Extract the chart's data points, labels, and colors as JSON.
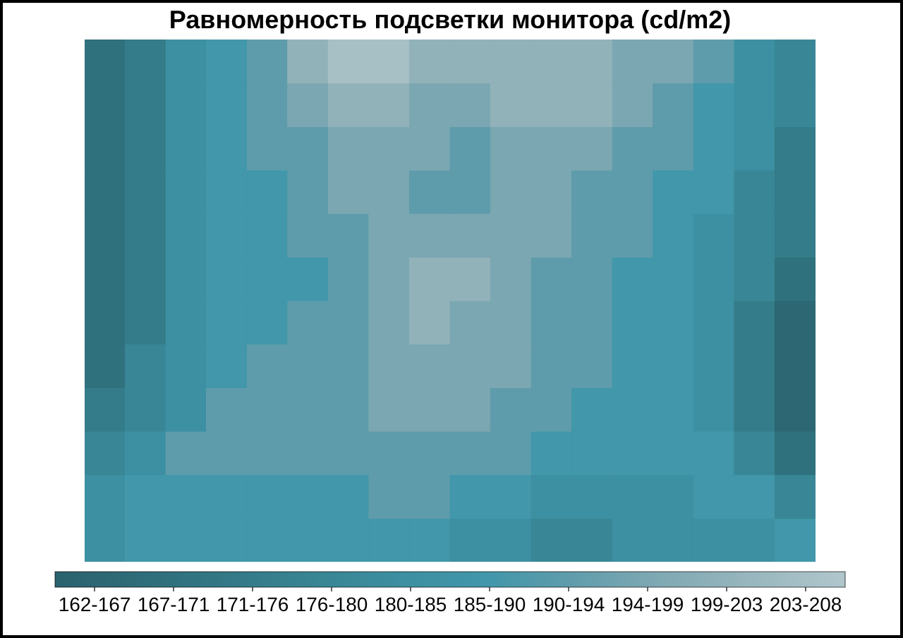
{
  "chart_data": {
    "type": "heatmap",
    "title": "Равномерность подсветки монитора (cd/m2)",
    "categories": [
      null,
      null,
      null,
      null,
      null,
      null,
      null,
      null,
      null,
      null,
      null,
      null,
      null,
      null,
      null,
      null,
      null,
      null
    ],
    "y_categories": [
      null,
      null,
      null,
      null,
      null,
      null,
      null,
      null,
      null,
      null,
      null,
      null
    ],
    "cells": [
      [
        168.9,
        173.5,
        182.7,
        187.3,
        191.9,
        201.1,
        205.7,
        205.7,
        201.1,
        201.1,
        201.1,
        201.1,
        201.1,
        196.5,
        196.5,
        191.9,
        182.7,
        178.1
      ],
      [
        168.9,
        173.5,
        182.7,
        187.3,
        191.9,
        196.5,
        201.1,
        201.1,
        196.5,
        196.5,
        201.1,
        201.1,
        201.1,
        196.5,
        191.9,
        187.3,
        182.7,
        178.1
      ],
      [
        168.9,
        173.5,
        182.7,
        187.3,
        191.9,
        191.9,
        196.5,
        196.5,
        196.5,
        191.9,
        196.5,
        196.5,
        196.5,
        191.9,
        191.9,
        187.3,
        182.7,
        173.5
      ],
      [
        168.9,
        173.5,
        182.7,
        187.3,
        187.3,
        191.9,
        196.5,
        196.5,
        191.9,
        191.9,
        196.5,
        196.5,
        191.9,
        191.9,
        187.3,
        187.3,
        178.1,
        173.5
      ],
      [
        168.9,
        173.5,
        182.7,
        187.3,
        187.3,
        191.9,
        191.9,
        196.5,
        196.5,
        196.5,
        196.5,
        196.5,
        191.9,
        191.9,
        187.3,
        182.7,
        178.1,
        173.5
      ],
      [
        168.9,
        173.5,
        182.7,
        187.3,
        187.3,
        187.3,
        191.9,
        196.5,
        201.1,
        201.1,
        196.5,
        191.9,
        191.9,
        187.3,
        187.3,
        182.7,
        178.1,
        168.9
      ],
      [
        168.9,
        173.5,
        182.7,
        187.3,
        187.3,
        191.9,
        191.9,
        196.5,
        201.1,
        196.5,
        196.5,
        191.9,
        191.9,
        187.3,
        187.3,
        182.7,
        173.5,
        164.3
      ],
      [
        168.9,
        178.1,
        182.7,
        187.3,
        191.9,
        191.9,
        191.9,
        196.5,
        196.5,
        196.5,
        196.5,
        191.9,
        191.9,
        187.3,
        187.3,
        182.7,
        173.5,
        164.3
      ],
      [
        173.5,
        178.1,
        182.7,
        191.9,
        191.9,
        191.9,
        191.9,
        196.5,
        196.5,
        196.5,
        191.9,
        191.9,
        187.3,
        187.3,
        187.3,
        182.7,
        173.5,
        164.3
      ],
      [
        178.1,
        182.7,
        191.9,
        191.9,
        191.9,
        191.9,
        191.9,
        191.9,
        191.9,
        191.9,
        191.9,
        187.3,
        187.3,
        187.3,
        187.3,
        187.3,
        178.1,
        168.9
      ],
      [
        182.7,
        187.3,
        187.3,
        187.3,
        187.3,
        187.3,
        187.3,
        191.9,
        191.9,
        187.3,
        187.3,
        182.7,
        182.7,
        182.7,
        182.7,
        187.3,
        187.3,
        178.1
      ],
      [
        182.7,
        187.3,
        187.3,
        187.3,
        187.3,
        187.3,
        187.3,
        187.3,
        187.3,
        182.7,
        182.7,
        178.1,
        178.1,
        182.7,
        182.7,
        182.7,
        182.7,
        187.3
      ]
    ],
    "clim": [
      162,
      208
    ],
    "cticks": [
      {
        "value": 164.3,
        "label": "162-167"
      },
      {
        "value": 168.9,
        "label": "167-171"
      },
      {
        "value": 173.5,
        "label": "171-176"
      },
      {
        "value": 178.1,
        "label": "176-180"
      },
      {
        "value": 182.7,
        "label": "180-185"
      },
      {
        "value": 187.3,
        "label": "185-190"
      },
      {
        "value": 191.9,
        "label": "190-194"
      },
      {
        "value": 196.5,
        "label": "194-199"
      },
      {
        "value": 201.1,
        "label": "199-203"
      },
      {
        "value": 205.7,
        "label": "203-208"
      }
    ],
    "colors": [
      "#2c6773",
      "#30717e",
      "#357c8a",
      "#398796",
      "#3d90a2",
      "#4297aa",
      "#5f9cab",
      "#7ba7b2",
      "#92b2ba",
      "#a6c0c6"
    ]
  }
}
